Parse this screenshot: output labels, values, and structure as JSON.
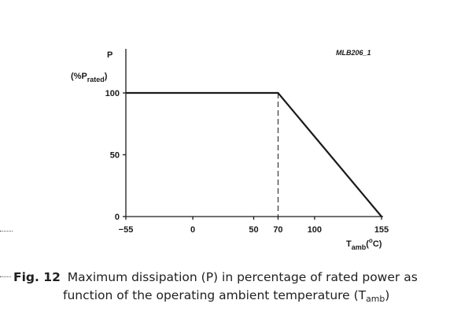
{
  "figure_ref": "MLB206_1",
  "caption": {
    "label": "Fig. 12",
    "line1": "Maximum dissipation (P) in percentage of rated power as",
    "line2_text": "function of the operating ambient temperature (T",
    "line2_sub": "amb",
    "line2_end": ")"
  },
  "chart_data": {
    "type": "line",
    "ylabel_main": "P",
    "ylabel_paren_open": "(%P",
    "ylabel_sub": "rated",
    "ylabel_paren_close": ")",
    "xlabel_main": "T",
    "xlabel_sub": "amb",
    "xlabel_open": "(",
    "xlabel_sup": "o",
    "xlabel_close": "C)",
    "xlim": [
      -55,
      155
    ],
    "ylim": [
      0,
      100
    ],
    "xticks": [
      "−55",
      "0",
      "50",
      "70",
      "100",
      "155"
    ],
    "yticks": [
      "0",
      "50",
      "100"
    ],
    "series": [
      {
        "x": [
          -55,
          70,
          155
        ],
        "y": [
          100,
          100,
          0
        ]
      }
    ],
    "reference_line": {
      "x": 70,
      "style": "dashed"
    },
    "grid": false,
    "colors": {
      "line": "#1a1a1a",
      "axis": "#1a1a1a"
    }
  }
}
